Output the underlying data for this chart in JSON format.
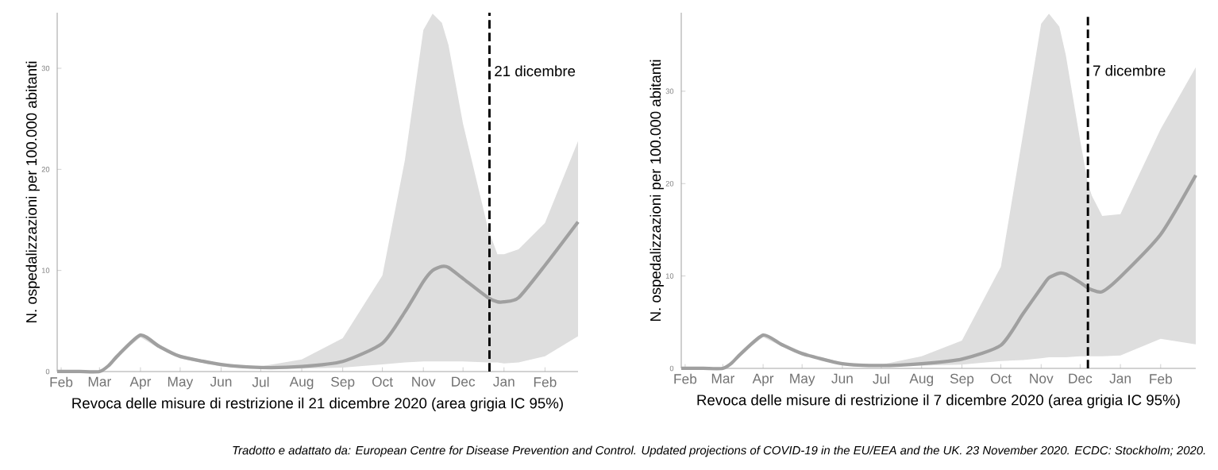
{
  "chart_data": [
    {
      "type": "line",
      "xlabel": "Revoca delle misure di restrizione il 21 dicembre 2020 (area grigia IC 95%)",
      "ylabel": "N. ospedalizzazioni per 100.000 abitanti",
      "x": [
        "2020-01-29",
        "2020-02-15",
        "2020-03-01",
        "2020-03-08",
        "2020-03-15",
        "2020-04-01",
        "2020-04-15",
        "2020-05-01",
        "2020-06-01",
        "2020-07-01",
        "2020-08-01",
        "2020-09-01",
        "2020-10-01",
        "2020-10-18",
        "2020-11-01",
        "2020-11-08",
        "2020-11-15",
        "2020-11-20",
        "2020-12-01",
        "2020-12-20",
        "2020-12-27",
        "2021-01-01",
        "2021-01-12",
        "2021-02-01",
        "2021-02-26"
      ],
      "series": [
        {
          "color": "#a0a0a0",
          "values": [
            0,
            0,
            0,
            0.6,
            1.6,
            3.6,
            2.5,
            1.5,
            0.7,
            0.4,
            0.5,
            1.0,
            2.8,
            5.9,
            8.9,
            10.0,
            10.4,
            10.3,
            9.2,
            7.3,
            6.9,
            6.9,
            7.3,
            10.5,
            14.8
          ],
          "upper": [
            0,
            0,
            0,
            0.6,
            1.7,
            3.8,
            2.7,
            1.6,
            0.8,
            0.5,
            1.2,
            3.3,
            9.5,
            20.9,
            33.8,
            35.4,
            34.5,
            32.3,
            24.5,
            14.1,
            11.6,
            11.6,
            12.1,
            14.7,
            22.8
          ],
          "lower": [
            0,
            0,
            0,
            0.6,
            1.5,
            3.4,
            2.3,
            1.3,
            0.5,
            0.3,
            0.3,
            0.4,
            0.7,
            0.9,
            1.0,
            1.0,
            1.0,
            1.0,
            1.0,
            0.9,
            0.9,
            0.8,
            0.9,
            1.5,
            3.5
          ]
        }
      ],
      "xlim": [
        "2020-01-29",
        "2021-02-26"
      ],
      "xticks": [
        {
          "value": "2020-02-01",
          "label": "Feb"
        },
        {
          "value": "2020-03-01",
          "label": "Mar"
        },
        {
          "value": "2020-04-01",
          "label": "Apr"
        },
        {
          "value": "2020-05-01",
          "label": "May"
        },
        {
          "value": "2020-06-01",
          "label": "Jun"
        },
        {
          "value": "2020-07-01",
          "label": "Jul"
        },
        {
          "value": "2020-08-01",
          "label": "Aug"
        },
        {
          "value": "2020-09-01",
          "label": "Sep"
        },
        {
          "value": "2020-10-01",
          "label": "Oct"
        },
        {
          "value": "2020-11-01",
          "label": "Nov"
        },
        {
          "value": "2020-12-01",
          "label": "Dec"
        },
        {
          "value": "2021-01-01",
          "label": "Jan"
        },
        {
          "value": "2021-02-01",
          "label": "Feb"
        }
      ],
      "ylim": [
        0,
        35.5
      ],
      "yticks": [
        0,
        10,
        20,
        30
      ],
      "grid": false,
      "line_style": "solid",
      "ref_lines": [
        {
          "axis": "x",
          "value": "2020-12-21",
          "label": "21 dicembre",
          "color": "#000000",
          "line_style": "dashed"
        }
      ]
    },
    {
      "type": "line",
      "xlabel": "Revoca delle misure di restrizione il 7 dicembre 2020 (area grigia IC 95%)",
      "ylabel": "N. ospedalizzazioni per 100.000 abitanti",
      "x": [
        "2020-01-29",
        "2020-02-15",
        "2020-03-01",
        "2020-03-08",
        "2020-03-15",
        "2020-04-01",
        "2020-04-15",
        "2020-05-01",
        "2020-06-01",
        "2020-07-01",
        "2020-08-01",
        "2020-09-01",
        "2020-10-01",
        "2020-10-18",
        "2020-11-01",
        "2020-11-07",
        "2020-11-15",
        "2020-11-20",
        "2020-12-01",
        "2020-12-07",
        "2020-12-10",
        "2020-12-18",
        "2021-01-01",
        "2021-02-01",
        "2021-02-28"
      ],
      "series": [
        {
          "color": "#a0a0a0",
          "values": [
            0,
            0,
            0,
            0.6,
            1.6,
            3.6,
            2.6,
            1.6,
            0.5,
            0.3,
            0.5,
            1.0,
            2.5,
            5.9,
            8.7,
            9.8,
            10.3,
            10.2,
            9.3,
            8.7,
            8.5,
            8.3,
            9.9,
            14.5,
            20.9
          ],
          "upper": [
            0,
            0,
            0,
            0.6,
            1.7,
            3.8,
            2.8,
            1.8,
            0.6,
            0.4,
            1.3,
            3.0,
            11.0,
            25.3,
            37.3,
            38.4,
            37.0,
            33.9,
            24.7,
            20.0,
            18.7,
            16.5,
            16.7,
            25.9,
            32.6
          ],
          "lower": [
            0,
            0,
            0,
            0.6,
            1.5,
            3.4,
            2.4,
            1.5,
            0.4,
            0.3,
            0.3,
            0.4,
            0.8,
            0.9,
            1.1,
            1.2,
            1.2,
            1.2,
            1.3,
            1.3,
            1.3,
            1.3,
            1.4,
            3.2,
            2.6
          ]
        }
      ],
      "xlim": [
        "2020-01-29",
        "2021-02-28"
      ],
      "xticks": [
        {
          "value": "2020-02-01",
          "label": "Feb"
        },
        {
          "value": "2020-03-01",
          "label": "Mar"
        },
        {
          "value": "2020-04-01",
          "label": "Apr"
        },
        {
          "value": "2020-05-01",
          "label": "May"
        },
        {
          "value": "2020-06-01",
          "label": "Jun"
        },
        {
          "value": "2020-07-01",
          "label": "Jul"
        },
        {
          "value": "2020-08-01",
          "label": "Aug"
        },
        {
          "value": "2020-09-01",
          "label": "Sep"
        },
        {
          "value": "2020-10-01",
          "label": "Oct"
        },
        {
          "value": "2020-11-01",
          "label": "Nov"
        },
        {
          "value": "2020-12-01",
          "label": "Dec"
        },
        {
          "value": "2021-01-01",
          "label": "Jan"
        },
        {
          "value": "2021-02-01",
          "label": "Feb"
        }
      ],
      "ylim": [
        0,
        38.5
      ],
      "yticks": [
        0,
        10,
        20,
        30
      ],
      "grid": false,
      "line_style": "solid",
      "ref_lines": [
        {
          "axis": "x",
          "value": "2020-12-07",
          "label": "7 dicembre",
          "color": "#000000",
          "line_style": "dashed"
        }
      ],
      "annotations": [
        "Tradotto e adattato da: European Centre for Disease Prevention and Control. Updated projections of COVID-19 in the EU/EEA and the UK. 23 November 2020. ECDC: Stockholm; 2020."
      ]
    }
  ]
}
